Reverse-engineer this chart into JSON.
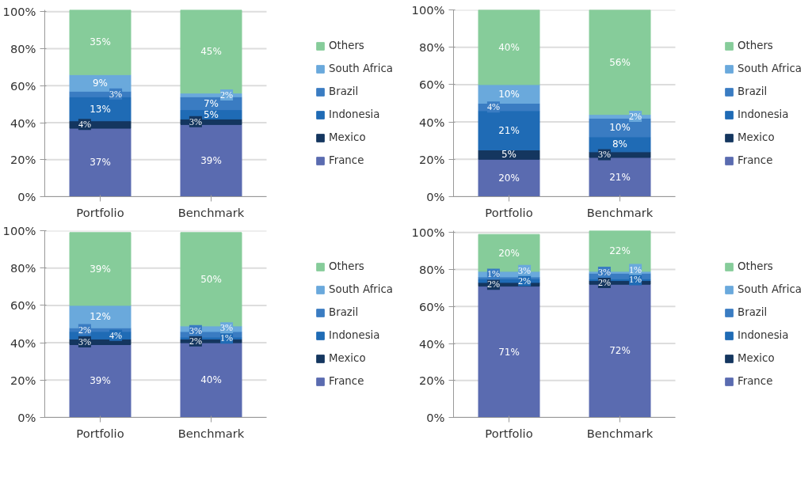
{
  "chart_data": [
    {
      "type": "bar",
      "stacked": true,
      "categories": [
        "Portfolio",
        "Benchmark"
      ],
      "ylim": [
        0,
        101
      ],
      "yticks": [
        {
          "value": 0,
          "label": "0%"
        },
        {
          "value": 20,
          "label": "20%"
        },
        {
          "value": 40,
          "label": "40%"
        },
        {
          "value": 60,
          "label": "60%"
        },
        {
          "value": 80,
          "label": "80%"
        },
        {
          "value": 100,
          "label": "100%"
        }
      ],
      "grid": "y",
      "legend": "right",
      "series": [
        {
          "name": "France",
          "color": "#5a6bb0",
          "values": [
            37,
            39
          ],
          "value_labels": [
            "37%",
            "39%"
          ]
        },
        {
          "name": "Mexico",
          "color": "#14365f",
          "values": [
            4,
            3
          ],
          "value_labels": [
            "4%",
            "3%"
          ]
        },
        {
          "name": "Indonesia",
          "color": "#1f6bb5",
          "values": [
            13,
            5
          ],
          "value_labels": [
            "13%",
            "5%"
          ]
        },
        {
          "name": "Brazil",
          "color": "#3a7cc2",
          "values": [
            3,
            7
          ],
          "value_labels": [
            "3%",
            "7%"
          ]
        },
        {
          "name": "South Africa",
          "color": "#6aa9dc",
          "values": [
            9,
            2
          ],
          "value_labels": [
            "9%",
            "2%"
          ]
        },
        {
          "name": "Others",
          "color": "#86cc9a",
          "values": [
            35,
            45
          ],
          "value_labels": [
            "35%",
            "45%"
          ]
        }
      ]
    },
    {
      "type": "bar",
      "stacked": true,
      "categories": [
        "Portfolio",
        "Benchmark"
      ],
      "ylim": [
        0,
        100
      ],
      "yticks": [
        {
          "value": 0,
          "label": "0%"
        },
        {
          "value": 20,
          "label": "20%"
        },
        {
          "value": 40,
          "label": "40%"
        },
        {
          "value": 60,
          "label": "60%"
        },
        {
          "value": 80,
          "label": "80%"
        },
        {
          "value": 100,
          "label": "100%"
        }
      ],
      "grid": "y",
      "legend": "right",
      "series": [
        {
          "name": "France",
          "color": "#5a6bb0",
          "values": [
            20,
            21
          ],
          "value_labels": [
            "20%",
            "21%"
          ]
        },
        {
          "name": "Mexico",
          "color": "#14365f",
          "values": [
            5,
            3
          ],
          "value_labels": [
            "5%",
            "3%"
          ]
        },
        {
          "name": "Indonesia",
          "color": "#1f6bb5",
          "values": [
            21,
            8
          ],
          "value_labels": [
            "21%",
            "8%"
          ]
        },
        {
          "name": "Brazil",
          "color": "#3a7cc2",
          "values": [
            4,
            10
          ],
          "value_labels": [
            "4%",
            "10%"
          ]
        },
        {
          "name": "South Africa",
          "color": "#6aa9dc",
          "values": [
            10,
            2
          ],
          "value_labels": [
            "10%",
            "2%"
          ]
        },
        {
          "name": "Others",
          "color": "#86cc9a",
          "values": [
            40,
            56
          ],
          "value_labels": [
            "40%",
            "56%"
          ]
        }
      ]
    },
    {
      "type": "bar",
      "stacked": true,
      "categories": [
        "Portfolio",
        "Benchmark"
      ],
      "ylim": [
        0,
        100
      ],
      "yticks": [
        {
          "value": 0,
          "label": "0%"
        },
        {
          "value": 20,
          "label": "20%"
        },
        {
          "value": 40,
          "label": "40%"
        },
        {
          "value": 60,
          "label": "60%"
        },
        {
          "value": 80,
          "label": "80%"
        },
        {
          "value": 100,
          "label": "100%"
        }
      ],
      "grid": "y",
      "legend": "right",
      "series": [
        {
          "name": "France",
          "color": "#5a6bb0",
          "values": [
            39,
            40
          ],
          "value_labels": [
            "39%",
            "40%"
          ]
        },
        {
          "name": "Mexico",
          "color": "#14365f",
          "values": [
            3,
            2
          ],
          "value_labels": [
            "3%",
            "2%"
          ]
        },
        {
          "name": "Indonesia",
          "color": "#1f6bb5",
          "values": [
            4,
            1
          ],
          "value_labels": [
            "4%",
            "1%"
          ]
        },
        {
          "name": "Brazil",
          "color": "#3a7cc2",
          "values": [
            2,
            3
          ],
          "value_labels": [
            "2%",
            "3%"
          ]
        },
        {
          "name": "South Africa",
          "color": "#6aa9dc",
          "values": [
            12,
            3
          ],
          "value_labels": [
            "12%",
            "3%"
          ]
        },
        {
          "name": "Others",
          "color": "#86cc9a",
          "values": [
            39,
            50
          ],
          "value_labels": [
            "39%",
            "50%"
          ]
        }
      ]
    },
    {
      "type": "bar",
      "stacked": true,
      "categories": [
        "Portfolio",
        "Benchmark"
      ],
      "ylim": [
        0,
        101
      ],
      "yticks": [
        {
          "value": 0,
          "label": "0%"
        },
        {
          "value": 20,
          "label": "20%"
        },
        {
          "value": 40,
          "label": "40%"
        },
        {
          "value": 60,
          "label": "60%"
        },
        {
          "value": 80,
          "label": "80%"
        },
        {
          "value": 100,
          "label": "100%"
        }
      ],
      "grid": "y",
      "legend": "right",
      "series": [
        {
          "name": "France",
          "color": "#5a6bb0",
          "values": [
            71,
            72
          ],
          "value_labels": [
            "71%",
            "72%"
          ]
        },
        {
          "name": "Mexico",
          "color": "#14365f",
          "values": [
            2,
            2
          ],
          "value_labels": [
            "2%",
            "2%"
          ]
        },
        {
          "name": "Indonesia",
          "color": "#1f6bb5",
          "values": [
            2,
            1
          ],
          "value_labels": [
            "2%",
            "1%"
          ]
        },
        {
          "name": "Brazil",
          "color": "#3a7cc2",
          "values": [
            1,
            3
          ],
          "value_labels": [
            "1%",
            "3%"
          ]
        },
        {
          "name": "South Africa",
          "color": "#6aa9dc",
          "values": [
            3,
            1
          ],
          "value_labels": [
            "3%",
            "1%"
          ]
        },
        {
          "name": "Others",
          "color": "#86cc9a",
          "values": [
            20,
            22
          ],
          "value_labels": [
            "20%",
            "22%"
          ]
        }
      ]
    }
  ]
}
